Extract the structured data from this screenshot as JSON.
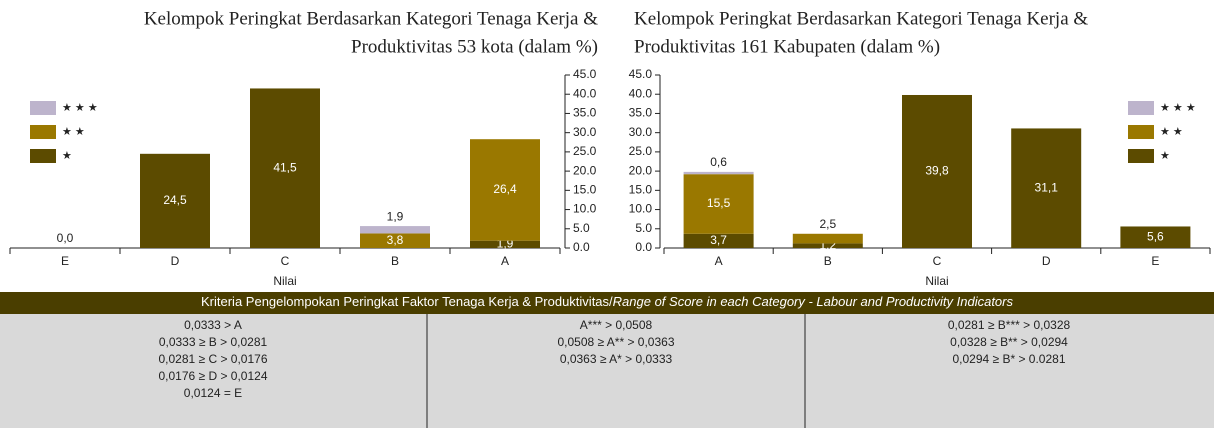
{
  "chart_data": [
    {
      "type": "bar",
      "stacked": true,
      "title": [
        "Kelompok Peringkat Berdasarkan Kategori  Tenaga Kerja &",
        "Produktivitas 53 kota (dalam %)"
      ],
      "x_label": "Nilai",
      "categories": [
        "E",
        "D",
        "C",
        "B",
        "A"
      ],
      "series": [
        {
          "name": "★",
          "color": "#5c4b00",
          "values": [
            0,
            24.5,
            41.5,
            0,
            1.9
          ],
          "value_labels": [
            "0,0",
            "24,5",
            "41,5",
            null,
            "1,9"
          ]
        },
        {
          "name": "★ ★",
          "color": "#9a7800",
          "values": [
            0,
            0,
            0,
            3.8,
            26.4
          ],
          "value_labels": [
            null,
            null,
            null,
            "3,8",
            "26,4"
          ]
        },
        {
          "name": "★ ★ ★",
          "color": "#bdb4cc",
          "values": [
            0,
            0,
            0,
            1.9,
            0
          ],
          "value_labels": [
            null,
            null,
            null,
            "1,9",
            null
          ]
        }
      ],
      "ylim": [
        0,
        45
      ],
      "y_axis": "right",
      "yticks": [
        {
          "value": 0,
          "label": "0.0"
        },
        {
          "value": 5,
          "label": "5.0"
        },
        {
          "value": 10,
          "label": "10.0"
        },
        {
          "value": 15,
          "label": "15.0"
        },
        {
          "value": 20,
          "label": "20.0"
        },
        {
          "value": 25,
          "label": "25.0"
        },
        {
          "value": 30,
          "label": "30.0"
        },
        {
          "value": 35,
          "label": "35.0"
        },
        {
          "value": 40,
          "label": "40.0"
        },
        {
          "value": 45,
          "label": "45.0"
        }
      ],
      "legend": "upper left"
    },
    {
      "type": "bar",
      "stacked": true,
      "title": [
        "Kelompok Peringkat Berdasarkan Kategori Tenaga Kerja &",
        "Produktivitas 161 Kabupaten (dalam %)"
      ],
      "x_label": "Nilai",
      "categories": [
        "A",
        "B",
        "C",
        "D",
        "E"
      ],
      "series": [
        {
          "name": "★",
          "color": "#5c4b00",
          "values": [
            3.7,
            1.2,
            39.8,
            31.1,
            5.6
          ],
          "value_labels": [
            "3,7",
            "1,2",
            "39,8",
            "31,1",
            "5,6"
          ]
        },
        {
          "name": "★ ★",
          "color": "#9a7800",
          "values": [
            15.5,
            2.5,
            0,
            0,
            0
          ],
          "value_labels": [
            "15,5",
            "2,5",
            null,
            null,
            null
          ]
        },
        {
          "name": "★ ★ ★",
          "color": "#bdb4cc",
          "values": [
            0.6,
            0,
            0,
            0,
            0
          ],
          "value_labels": [
            "0,6",
            null,
            null,
            null,
            null
          ]
        }
      ],
      "ylim": [
        0,
        45
      ],
      "y_axis": "left",
      "yticks": [
        {
          "value": 0,
          "label": "0.0"
        },
        {
          "value": 5,
          "label": "5.0"
        },
        {
          "value": 10,
          "label": "10.0"
        },
        {
          "value": 15,
          "label": "15.0"
        },
        {
          "value": 20,
          "label": "20.0"
        },
        {
          "value": 25,
          "label": "25.0"
        },
        {
          "value": 30,
          "label": "30.0"
        },
        {
          "value": 35,
          "label": "35.0"
        },
        {
          "value": 40,
          "label": "40.0"
        },
        {
          "value": 45,
          "label": "45.0"
        }
      ],
      "legend": "upper right"
    }
  ],
  "table": {
    "header": [
      "Kriteria Pengelompokan Peringkat Faktor Tenaga Kerja & Produktivitas/",
      "Range of Score in each Category - Labour and Productivity Indicators"
    ],
    "columns": [
      [
        "0,0333 > A",
        "0,0333  ≥ B > 0,0281",
        "0,0281  ≥ C > 0,0176",
        "0,0176  ≥ D > 0,0124",
        "0,0124 = E"
      ],
      [
        "A*** > 0,0508",
        "0,0508  ≥  A** > 0,0363",
        "0,0363 ≥  A* > 0,0333"
      ],
      [
        "0,0281 ≥ B*** > 0,0328",
        "0,0328 ≥  B** > 0,0294",
        "0,0294  ≥  B* > 0.0281"
      ]
    ]
  }
}
